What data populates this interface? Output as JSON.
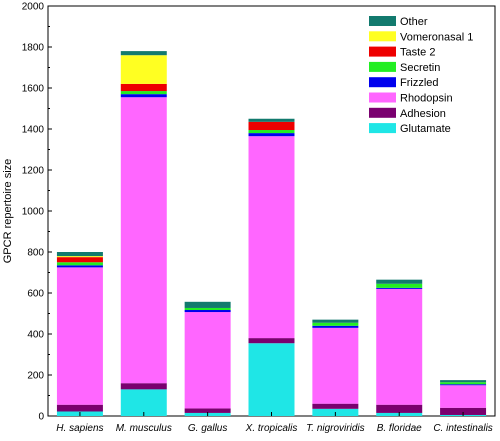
{
  "chart_data": {
    "type": "bar",
    "stacked": true,
    "ylabel": "GPCR repertoire size",
    "xlabel": "",
    "ylim": [
      0,
      2000
    ],
    "yticks": [
      0,
      200,
      400,
      600,
      800,
      1000,
      1200,
      1400,
      1600,
      1800,
      2000
    ],
    "grid": false,
    "legend_position": "top-right",
    "categories": [
      "H. sapiens",
      "M. musculus",
      "G. gallus",
      "X. tropicalis",
      "T. nigroviridis",
      "B. floridae",
      "C. intestinalis"
    ],
    "series": [
      {
        "name": "Glutamate",
        "color": "#1fe6e6",
        "values": [
          22,
          130,
          15,
          355,
          35,
          15,
          5
        ]
      },
      {
        "name": "Adhesion",
        "color": "#7a006f",
        "values": [
          33,
          30,
          22,
          25,
          25,
          40,
          35
        ]
      },
      {
        "name": "Rhodopsin",
        "color": "#ff66ff",
        "values": [
          670,
          1395,
          470,
          985,
          370,
          565,
          110
        ]
      },
      {
        "name": "Frizzled",
        "color": "#0000ee",
        "values": [
          10,
          15,
          10,
          15,
          10,
          5,
          5
        ]
      },
      {
        "name": "Secretin",
        "color": "#22ee22",
        "values": [
          15,
          15,
          10,
          15,
          15,
          20,
          10
        ]
      },
      {
        "name": "Taste 2",
        "color": "#ee0000",
        "values": [
          25,
          35,
          0,
          40,
          0,
          0,
          0
        ]
      },
      {
        "name": "Vomeronasal 1",
        "color": "#ffff22",
        "values": [
          5,
          140,
          0,
          0,
          0,
          0,
          0
        ]
      },
      {
        "name": "Other",
        "color": "#127a6e",
        "values": [
          20,
          20,
          30,
          15,
          15,
          20,
          10
        ]
      }
    ]
  }
}
